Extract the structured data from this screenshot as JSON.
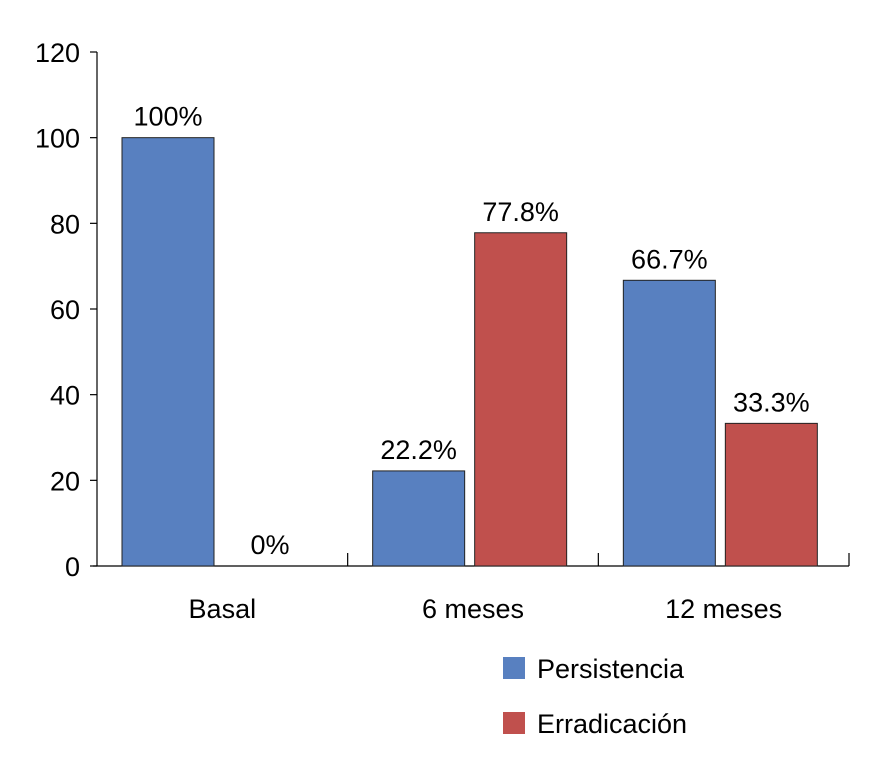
{
  "chart_data": {
    "type": "bar",
    "title": "",
    "xlabel": "",
    "ylabel": "",
    "ylim": [
      0,
      120
    ],
    "yticks": [
      "0",
      "20",
      "40",
      "60",
      "80",
      "100",
      "120"
    ],
    "categories": [
      "Basal",
      "6 meses",
      "12 meses"
    ],
    "series": [
      {
        "name": "Persistencia",
        "color": "#5880c0",
        "values": [
          100,
          22.2,
          66.7
        ],
        "labels": [
          "100%",
          "22.2%",
          "66.7%"
        ]
      },
      {
        "name": "Erradicación",
        "color": "#c0504d",
        "values": [
          0,
          77.8,
          33.3
        ],
        "labels": [
          "0%",
          "77.8%",
          "33.3%"
        ]
      }
    ],
    "legend_position": "bottom-right",
    "grid": false
  }
}
